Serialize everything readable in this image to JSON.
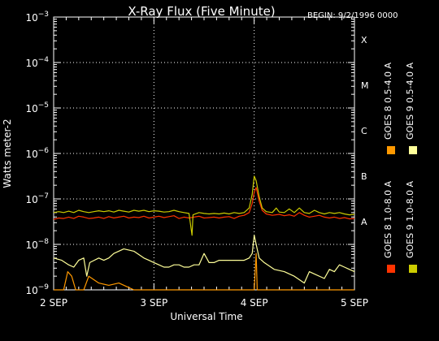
{
  "chart_data": {
    "type": "line",
    "title": "X-Ray Flux (Five Minute)",
    "begin_label": "BEGIN: 9/2/1996 0000",
    "xlabel": "Universal Time",
    "ylabel": "Watts meter-2",
    "x_unit": "days since 1996-09-02 00:00 UT",
    "xlim": [
      0,
      3
    ],
    "x_ticks": [
      {
        "x": 0,
        "label": "2 SEP"
      },
      {
        "x": 1,
        "label": "3 SEP"
      },
      {
        "x": 2,
        "label": "4 SEP"
      },
      {
        "x": 3,
        "label": "5 SEP"
      }
    ],
    "y_scale": "log",
    "ylim": [
      1e-09,
      0.001
    ],
    "y_ticks": [
      {
        "exp": -9,
        "base": "10",
        "sup": "−9"
      },
      {
        "exp": -8,
        "base": "10",
        "sup": "−8"
      },
      {
        "exp": -7,
        "base": "10",
        "sup": "−7"
      },
      {
        "exp": -6,
        "base": "10",
        "sup": "−6"
      },
      {
        "exp": -5,
        "base": "10",
        "sup": "−5"
      },
      {
        "exp": -4,
        "base": "10",
        "sup": "−4"
      },
      {
        "exp": -3,
        "base": "10",
        "sup": "−3"
      }
    ],
    "flare_classes": [
      {
        "label": "A",
        "exp": -7.5
      },
      {
        "label": "B",
        "exp": -6.5
      },
      {
        "label": "C",
        "exp": -5.5
      },
      {
        "label": "M",
        "exp": -4.5
      },
      {
        "label": "X",
        "exp": -3.5
      }
    ],
    "grid": {
      "horizontal_dotted": [
        -8,
        -7,
        -6,
        -5,
        -4
      ],
      "vertical_dotted": [
        1,
        2
      ]
    },
    "legend": {
      "placement": "right-vertical"
    },
    "series": [
      {
        "name": "GOES 8 1.0-8.0 A",
        "color": "#ff3300",
        "points": [
          [
            0,
            -7.45
          ],
          [
            0.05,
            -7.42
          ],
          [
            0.1,
            -7.43
          ],
          [
            0.15,
            -7.4
          ],
          [
            0.2,
            -7.43
          ],
          [
            0.25,
            -7.38
          ],
          [
            0.3,
            -7.4
          ],
          [
            0.35,
            -7.43
          ],
          [
            0.4,
            -7.42
          ],
          [
            0.45,
            -7.4
          ],
          [
            0.5,
            -7.43
          ],
          [
            0.55,
            -7.39
          ],
          [
            0.6,
            -7.42
          ],
          [
            0.65,
            -7.4
          ],
          [
            0.7,
            -7.38
          ],
          [
            0.75,
            -7.42
          ],
          [
            0.8,
            -7.4
          ],
          [
            0.85,
            -7.41
          ],
          [
            0.9,
            -7.38
          ],
          [
            0.95,
            -7.42
          ],
          [
            1.0,
            -7.4
          ],
          [
            1.05,
            -7.38
          ],
          [
            1.1,
            -7.41
          ],
          [
            1.15,
            -7.39
          ],
          [
            1.2,
            -7.37
          ],
          [
            1.25,
            -7.43
          ],
          [
            1.3,
            -7.4
          ],
          [
            1.35,
            -7.42
          ],
          [
            1.4,
            -7.4
          ],
          [
            1.45,
            -7.38
          ],
          [
            1.5,
            -7.42
          ],
          [
            1.55,
            -7.41
          ],
          [
            1.6,
            -7.4
          ],
          [
            1.65,
            -7.42
          ],
          [
            1.7,
            -7.4
          ],
          [
            1.75,
            -7.39
          ],
          [
            1.8,
            -7.43
          ],
          [
            1.85,
            -7.38
          ],
          [
            1.9,
            -7.36
          ],
          [
            1.95,
            -7.3
          ],
          [
            1.98,
            -7.1
          ],
          [
            2.0,
            -6.85
          ],
          [
            2.02,
            -6.75
          ],
          [
            2.05,
            -7.05
          ],
          [
            2.08,
            -7.25
          ],
          [
            2.12,
            -7.33
          ],
          [
            2.18,
            -7.36
          ],
          [
            2.25,
            -7.34
          ],
          [
            2.3,
            -7.37
          ],
          [
            2.35,
            -7.35
          ],
          [
            2.4,
            -7.38
          ],
          [
            2.45,
            -7.3
          ],
          [
            2.5,
            -7.36
          ],
          [
            2.55,
            -7.4
          ],
          [
            2.6,
            -7.38
          ],
          [
            2.65,
            -7.36
          ],
          [
            2.7,
            -7.4
          ],
          [
            2.75,
            -7.42
          ],
          [
            2.8,
            -7.4
          ],
          [
            2.85,
            -7.43
          ],
          [
            2.9,
            -7.41
          ],
          [
            2.95,
            -7.44
          ],
          [
            3.0,
            -7.43
          ]
        ]
      },
      {
        "name": "GOES 8 0.5-4.0 A",
        "color": "#ff9900",
        "points": [
          [
            0,
            -9.0
          ],
          [
            0.1,
            -9.0
          ],
          [
            0.14,
            -8.6
          ],
          [
            0.18,
            -8.7
          ],
          [
            0.22,
            -9.0
          ],
          [
            0.3,
            -9.0
          ],
          [
            0.35,
            -8.7
          ],
          [
            0.45,
            -8.85
          ],
          [
            0.55,
            -8.9
          ],
          [
            0.65,
            -8.85
          ],
          [
            0.75,
            -8.95
          ],
          [
            0.8,
            -9.0
          ],
          [
            1.0,
            -9.0
          ],
          [
            1.6,
            -9.0
          ],
          [
            2.0,
            -9.0
          ],
          [
            2.02,
            -8.2
          ],
          [
            2.03,
            -9.0
          ],
          [
            2.2,
            -9.0
          ],
          [
            3.0,
            -9.0
          ]
        ]
      },
      {
        "name": "GOES 9 1.0-8.0 A",
        "color": "#cccc00",
        "points": [
          [
            0,
            -7.3
          ],
          [
            0.05,
            -7.28
          ],
          [
            0.1,
            -7.3
          ],
          [
            0.15,
            -7.27
          ],
          [
            0.2,
            -7.3
          ],
          [
            0.25,
            -7.25
          ],
          [
            0.3,
            -7.28
          ],
          [
            0.35,
            -7.3
          ],
          [
            0.4,
            -7.28
          ],
          [
            0.45,
            -7.26
          ],
          [
            0.5,
            -7.28
          ],
          [
            0.55,
            -7.26
          ],
          [
            0.6,
            -7.29
          ],
          [
            0.65,
            -7.25
          ],
          [
            0.7,
            -7.27
          ],
          [
            0.75,
            -7.29
          ],
          [
            0.8,
            -7.25
          ],
          [
            0.85,
            -7.27
          ],
          [
            0.9,
            -7.25
          ],
          [
            0.95,
            -7.28
          ],
          [
            1.0,
            -7.26
          ],
          [
            1.05,
            -7.27
          ],
          [
            1.1,
            -7.29
          ],
          [
            1.15,
            -7.28
          ],
          [
            1.2,
            -7.25
          ],
          [
            1.25,
            -7.28
          ],
          [
            1.3,
            -7.3
          ],
          [
            1.35,
            -7.32
          ],
          [
            1.38,
            -7.8
          ],
          [
            1.39,
            -7.35
          ],
          [
            1.45,
            -7.3
          ],
          [
            1.5,
            -7.32
          ],
          [
            1.55,
            -7.33
          ],
          [
            1.6,
            -7.32
          ],
          [
            1.65,
            -7.33
          ],
          [
            1.7,
            -7.31
          ],
          [
            1.75,
            -7.33
          ],
          [
            1.8,
            -7.3
          ],
          [
            1.85,
            -7.32
          ],
          [
            1.9,
            -7.3
          ],
          [
            1.95,
            -7.2
          ],
          [
            1.98,
            -6.9
          ],
          [
            2.0,
            -6.5
          ],
          [
            2.02,
            -6.6
          ],
          [
            2.05,
            -6.95
          ],
          [
            2.08,
            -7.2
          ],
          [
            2.12,
            -7.28
          ],
          [
            2.18,
            -7.3
          ],
          [
            2.22,
            -7.2
          ],
          [
            2.25,
            -7.29
          ],
          [
            2.3,
            -7.3
          ],
          [
            2.35,
            -7.22
          ],
          [
            2.4,
            -7.3
          ],
          [
            2.45,
            -7.2
          ],
          [
            2.5,
            -7.3
          ],
          [
            2.55,
            -7.32
          ],
          [
            2.6,
            -7.25
          ],
          [
            2.65,
            -7.3
          ],
          [
            2.7,
            -7.33
          ],
          [
            2.75,
            -7.3
          ],
          [
            2.8,
            -7.32
          ],
          [
            2.85,
            -7.3
          ],
          [
            2.9,
            -7.33
          ],
          [
            2.95,
            -7.35
          ],
          [
            3.0,
            -7.34
          ]
        ]
      },
      {
        "name": "GOES 9 0.5-4.0 A",
        "color": "#ffff99",
        "points": [
          [
            0,
            -8.3
          ],
          [
            0.08,
            -8.35
          ],
          [
            0.15,
            -8.45
          ],
          [
            0.2,
            -8.5
          ],
          [
            0.25,
            -8.35
          ],
          [
            0.3,
            -8.3
          ],
          [
            0.33,
            -8.7
          ],
          [
            0.36,
            -8.4
          ],
          [
            0.45,
            -8.3
          ],
          [
            0.5,
            -8.35
          ],
          [
            0.55,
            -8.3
          ],
          [
            0.6,
            -8.2
          ],
          [
            0.7,
            -8.1
          ],
          [
            0.8,
            -8.15
          ],
          [
            0.9,
            -8.3
          ],
          [
            0.95,
            -8.35
          ],
          [
            1.0,
            -8.4
          ],
          [
            1.05,
            -8.45
          ],
          [
            1.1,
            -8.5
          ],
          [
            1.15,
            -8.5
          ],
          [
            1.2,
            -8.45
          ],
          [
            1.25,
            -8.45
          ],
          [
            1.3,
            -8.5
          ],
          [
            1.35,
            -8.5
          ],
          [
            1.4,
            -8.45
          ],
          [
            1.45,
            -8.45
          ],
          [
            1.5,
            -8.2
          ],
          [
            1.55,
            -8.4
          ],
          [
            1.6,
            -8.4
          ],
          [
            1.65,
            -8.35
          ],
          [
            1.7,
            -8.35
          ],
          [
            1.75,
            -8.35
          ],
          [
            1.8,
            -8.35
          ],
          [
            1.85,
            -8.35
          ],
          [
            1.9,
            -8.35
          ],
          [
            1.95,
            -8.3
          ],
          [
            1.98,
            -8.2
          ],
          [
            2.0,
            -7.8
          ],
          [
            2.02,
            -8.0
          ],
          [
            2.05,
            -8.3
          ],
          [
            2.1,
            -8.4
          ],
          [
            2.2,
            -8.55
          ],
          [
            2.3,
            -8.6
          ],
          [
            2.4,
            -8.7
          ],
          [
            2.5,
            -8.85
          ],
          [
            2.55,
            -8.6
          ],
          [
            2.6,
            -8.65
          ],
          [
            2.7,
            -8.75
          ],
          [
            2.75,
            -8.55
          ],
          [
            2.8,
            -8.6
          ],
          [
            2.85,
            -8.45
          ],
          [
            2.9,
            -8.5
          ],
          [
            2.95,
            -8.55
          ],
          [
            3.0,
            -8.6
          ]
        ]
      }
    ]
  }
}
